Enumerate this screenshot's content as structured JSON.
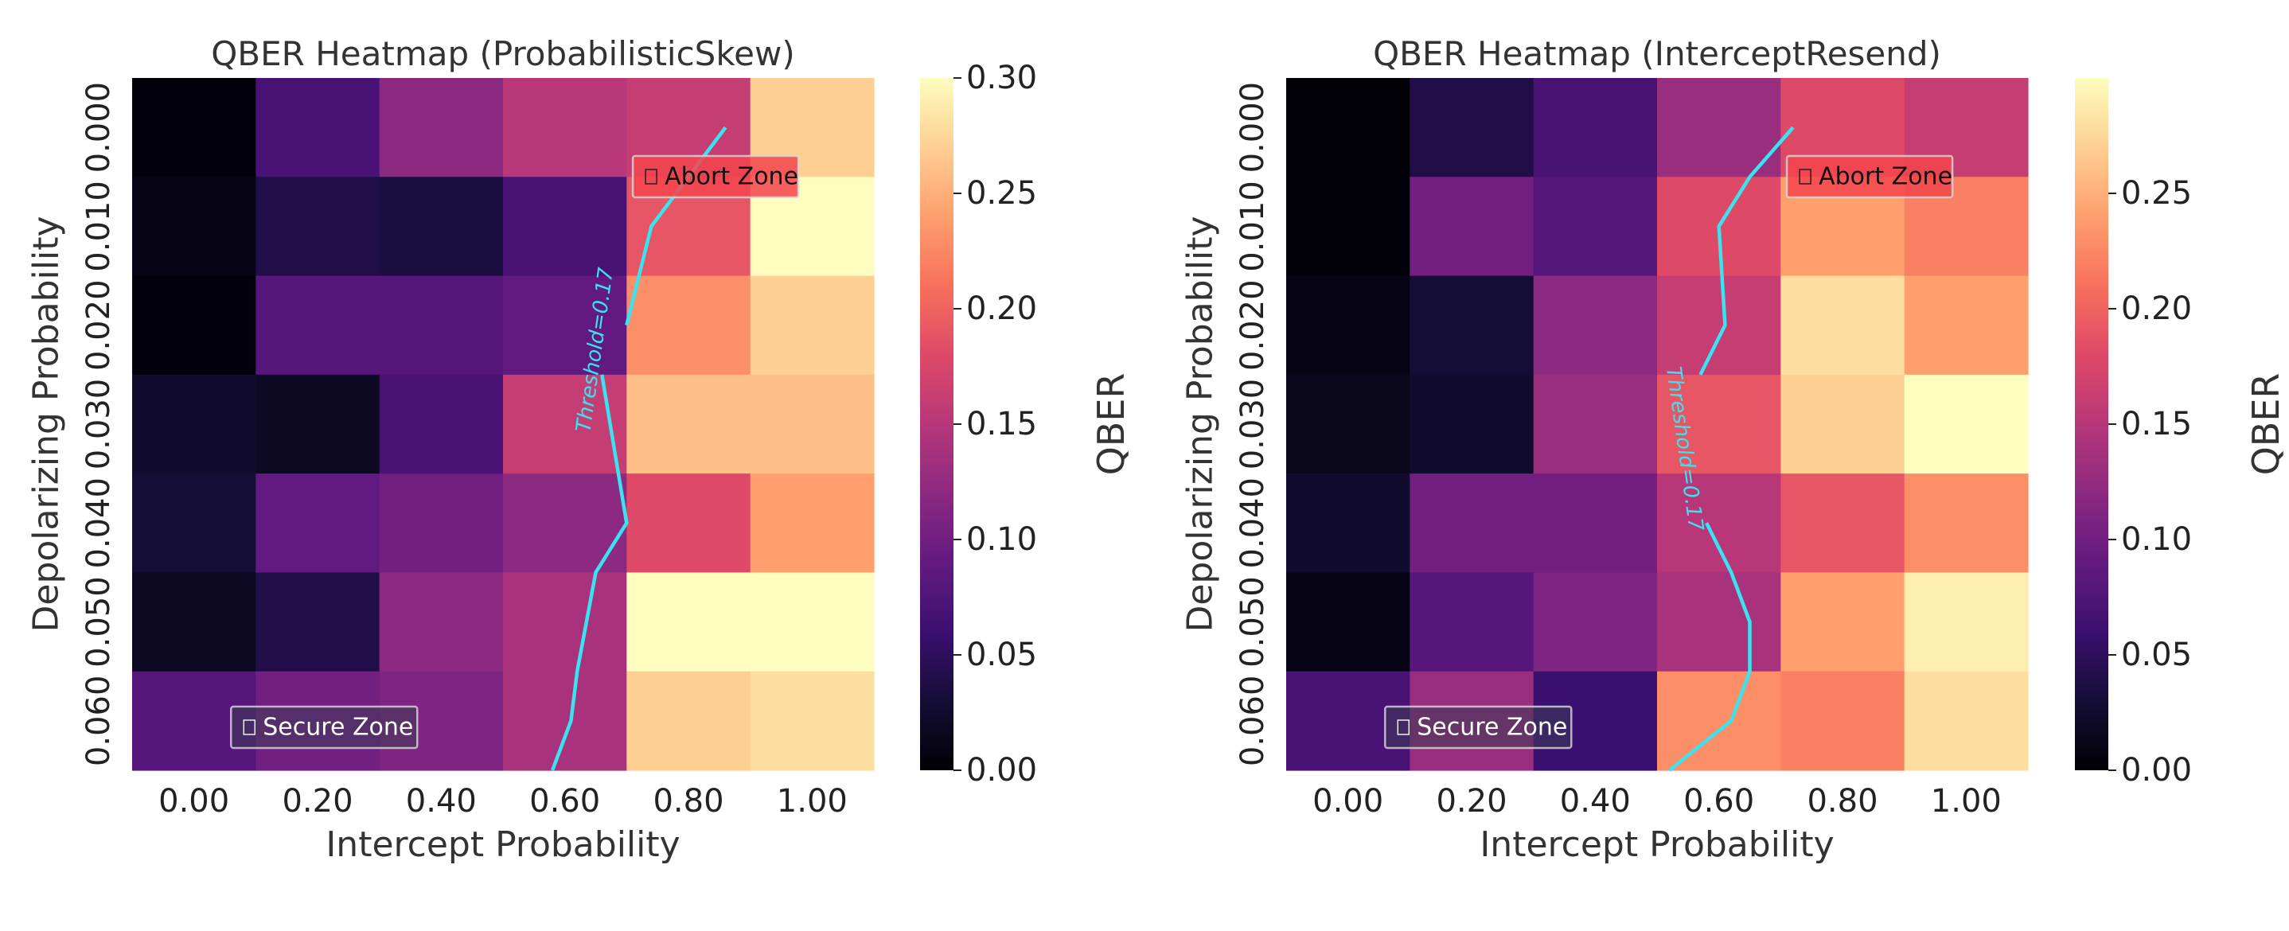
{
  "chart_data": [
    {
      "type": "heatmap",
      "title": "QBER Heatmap (ProbabilisticSkew)",
      "xlabel": "Intercept Probability",
      "ylabel": "Depolarizing Probability",
      "x": [
        "0.00",
        "0.20",
        "0.40",
        "0.60",
        "0.80",
        "1.00"
      ],
      "y": [
        "0.000",
        "0.010",
        "0.020",
        "0.030",
        "0.040",
        "0.050",
        "0.060"
      ],
      "values": [
        [
          0.005,
          0.07,
          0.12,
          0.15,
          0.16,
          0.27
        ],
        [
          0.01,
          0.04,
          0.035,
          0.07,
          0.19,
          0.3
        ],
        [
          0.005,
          0.08,
          0.08,
          0.09,
          0.23,
          0.27
        ],
        [
          0.025,
          0.02,
          0.07,
          0.16,
          0.26,
          0.26
        ],
        [
          0.03,
          0.09,
          0.1,
          0.12,
          0.18,
          0.24
        ],
        [
          0.02,
          0.04,
          0.12,
          0.14,
          0.3,
          0.31
        ],
        [
          0.08,
          0.1,
          0.11,
          0.14,
          0.27,
          0.28
        ]
      ],
      "colorbar": {
        "label": "QBER",
        "range": [
          0.0,
          0.3
        ],
        "ticks": [
          "0.00",
          "0.05",
          "0.10",
          "0.15",
          "0.20",
          "0.25",
          "0.30"
        ]
      },
      "threshold": {
        "label": "Threshold=0.17",
        "path_data": [
          [
            0.0,
            0.86
          ],
          [
            0.01,
            0.74
          ],
          [
            0.02,
            0.7
          ],
          [
            0.025,
            0.66
          ],
          [
            0.04,
            0.7
          ],
          [
            0.045,
            0.65
          ],
          [
            0.055,
            0.62
          ],
          [
            0.06,
            0.61
          ],
          [
            0.065,
            0.58
          ]
        ]
      },
      "annotations": [
        {
          "text": "Abort Zone",
          "icon": "square-icon",
          "zone": "abort"
        },
        {
          "text": "Secure Zone",
          "icon": "square-icon",
          "zone": "secure"
        }
      ]
    },
    {
      "type": "heatmap",
      "title": "QBER Heatmap (InterceptResend)",
      "xlabel": "Intercept Probability",
      "ylabel": "Depolarizing Probability",
      "x": [
        "0.00",
        "0.20",
        "0.40",
        "0.60",
        "0.80",
        "1.00"
      ],
      "y": [
        "0.000",
        "0.010",
        "0.020",
        "0.030",
        "0.040",
        "0.050",
        "0.060"
      ],
      "values": [
        [
          0.002,
          0.04,
          0.07,
          0.13,
          0.18,
          0.16
        ],
        [
          0.004,
          0.1,
          0.08,
          0.18,
          0.24,
          0.22
        ],
        [
          0.01,
          0.03,
          0.12,
          0.16,
          0.28,
          0.24
        ],
        [
          0.015,
          0.025,
          0.13,
          0.19,
          0.27,
          0.3
        ],
        [
          0.025,
          0.1,
          0.1,
          0.15,
          0.19,
          0.23
        ],
        [
          0.01,
          0.08,
          0.11,
          0.14,
          0.24,
          0.29
        ],
        [
          0.07,
          0.13,
          0.06,
          0.23,
          0.22,
          0.28
        ]
      ],
      "colorbar": {
        "label": "QBER",
        "range": [
          0.0,
          0.3
        ],
        "ticks": [
          "0.00",
          "0.05",
          "0.10",
          "0.15",
          "0.20",
          "0.25"
        ]
      },
      "threshold": {
        "label": "Threshold=0.17",
        "path_data": [
          [
            0.0,
            0.72
          ],
          [
            0.005,
            0.65
          ],
          [
            0.01,
            0.6
          ],
          [
            0.02,
            0.61
          ],
          [
            0.025,
            0.57
          ],
          [
            0.04,
            0.58
          ],
          [
            0.045,
            0.62
          ],
          [
            0.05,
            0.65
          ],
          [
            0.055,
            0.65
          ],
          [
            0.06,
            0.62
          ],
          [
            0.065,
            0.52
          ]
        ]
      },
      "annotations": [
        {
          "text": "Abort Zone",
          "icon": "square-icon",
          "zone": "abort"
        },
        {
          "text": "Secure Zone",
          "icon": "square-icon",
          "zone": "secure"
        }
      ]
    }
  ],
  "colors": {
    "threshold_line": "#3be3ee",
    "abort_box": "#f5454e",
    "secure_box": "#3d3d55",
    "text": "#333333",
    "tick": "#222222"
  }
}
